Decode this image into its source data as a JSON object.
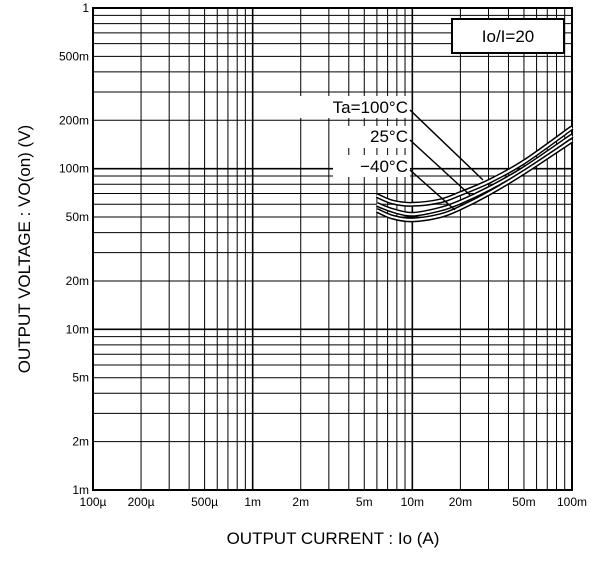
{
  "chart_data": {
    "type": "line",
    "xscale": "log",
    "yscale": "log",
    "xlim": [
      "100µ",
      "100m"
    ],
    "ylim": [
      "1m",
      "1"
    ],
    "xlabel": "OUTPUT CURRENT : Io (A)",
    "ylabel": "OUTPUT VOLTAGE : VO(on) (V)",
    "x_ticks": [
      "100µ",
      "200µ",
      "500µ",
      "1m",
      "2m",
      "5m",
      "10m",
      "20m",
      "50m",
      "100m"
    ],
    "y_ticks": [
      "1m",
      "2m",
      "5m",
      "10m",
      "20m",
      "50m",
      "100m",
      "200m",
      "500m",
      "1"
    ],
    "grid": true,
    "condition_label": "Io/I=20",
    "series": [
      {
        "name": "Ta=100°C",
        "x": [
          0.006,
          0.0075,
          0.01,
          0.015,
          0.02,
          0.03,
          0.05,
          0.1
        ],
        "y": [
          0.068,
          0.062,
          0.06,
          0.063,
          0.07,
          0.083,
          0.11,
          0.18
        ]
      },
      {
        "name": "25°C",
        "x": [
          0.006,
          0.0075,
          0.01,
          0.015,
          0.02,
          0.03,
          0.05,
          0.1
        ],
        "y": [
          0.06,
          0.055,
          0.052,
          0.056,
          0.062,
          0.075,
          0.1,
          0.16
        ]
      },
      {
        "name": "−40°C",
        "x": [
          0.006,
          0.0075,
          0.01,
          0.015,
          0.02,
          0.03,
          0.05,
          0.1
        ],
        "y": [
          0.055,
          0.05,
          0.048,
          0.051,
          0.057,
          0.07,
          0.095,
          0.15
        ]
      }
    ]
  }
}
